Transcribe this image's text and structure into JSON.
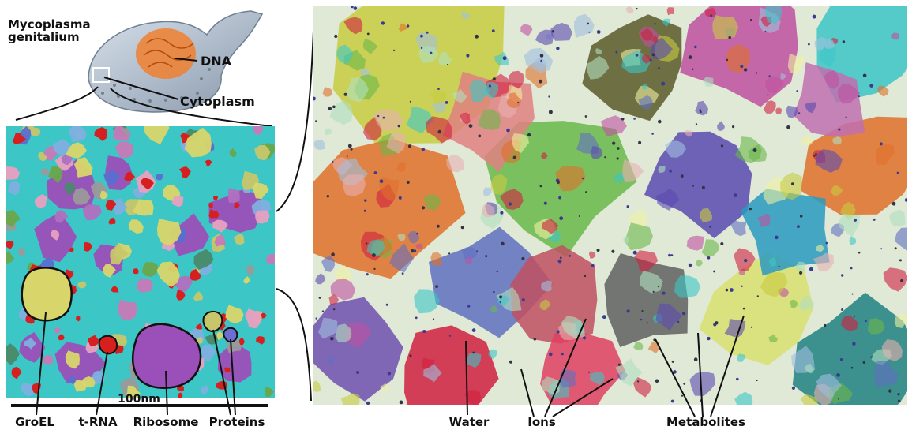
{
  "cell": {
    "name_line1": "Mycoplasma",
    "name_line2": "genitalium",
    "dna_label": "DNA",
    "cytoplasm_label": "Cytoplasm"
  },
  "scale_bar": {
    "label": "100nm"
  },
  "left_labels": [
    "GroEL",
    "t-RNA",
    "Ribosome",
    "Proteins"
  ],
  "right_labels": [
    "Water",
    "Ions",
    "Metabolites"
  ],
  "colors": {
    "water": "#3cc6c6",
    "ribosome": "#9b4fb8",
    "trna": "#d62020",
    "groel": "#d8d66a",
    "dna": "#f08030",
    "cell_body": "#a9b6c6"
  }
}
